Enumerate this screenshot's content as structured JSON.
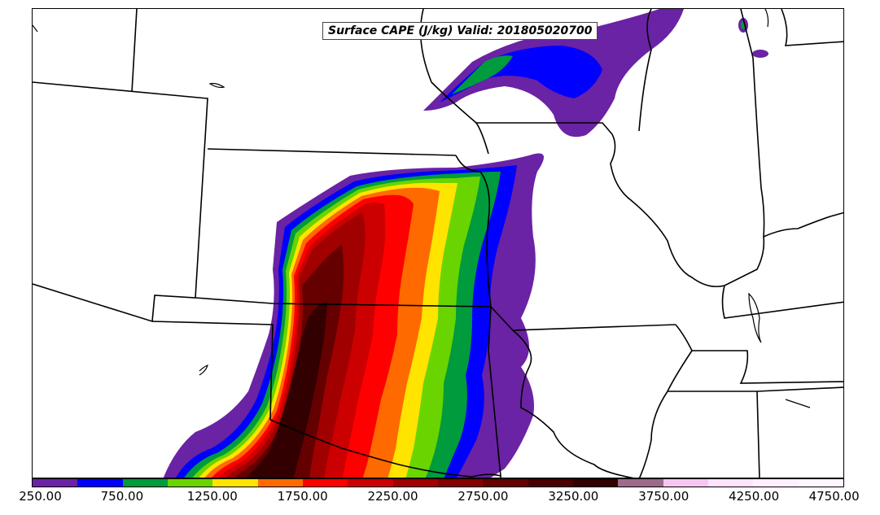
{
  "title": "Surface CAPE (J/kg) Valid: 201805020700",
  "colorbar": {
    "colors": [
      "#6a23a4",
      "#0000ff",
      "#009b3c",
      "#6ad400",
      "#ffe400",
      "#ff6a00",
      "#ff0000",
      "#cc0000",
      "#a00000",
      "#840000",
      "#640000",
      "#4a0000",
      "#320000",
      "#9c6b8c",
      "#f6c6f2",
      "#fde3fb",
      "#ffeefe",
      "#fff6ff"
    ],
    "labels": [
      "250.00",
      "750.00",
      "1250.00",
      "1750.00",
      "2250.00",
      "2750.00",
      "3250.00",
      "3750.00",
      "4250.00",
      "4750.00"
    ]
  },
  "legend": {
    "palette": {
      "purple": "#6a23a4",
      "blue": "#0000ff",
      "dark_green": "#009b3c",
      "light_green": "#6ad400",
      "yellow": "#ffe400",
      "orange": "#ff6a00",
      "red": "#ff0000",
      "dark_red": "#cc0000",
      "maroon": "#a00000",
      "deep_maroon": "#640000",
      "darkest": "#320000"
    }
  }
}
